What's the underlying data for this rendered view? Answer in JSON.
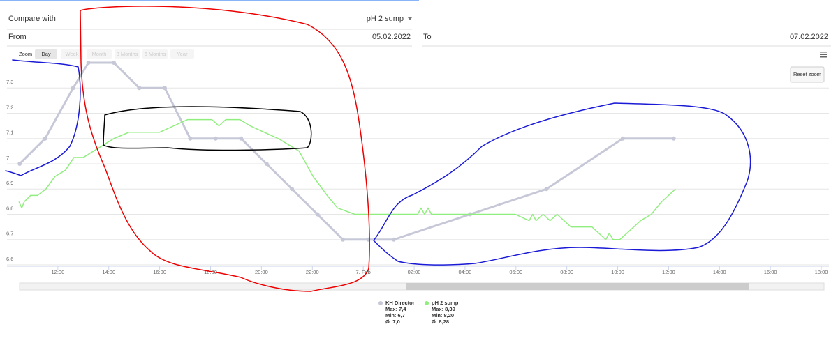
{
  "controls": {
    "compare_label": "Compare with",
    "compare_value": "pH 2 sump",
    "from_label": "From",
    "from_value": "05.02.2022",
    "to_label": "To",
    "to_value": "07.02.2022",
    "zoom_label": "Zoom",
    "zoom_buttons": [
      "Day",
      "Week",
      "Month",
      "3 Months",
      "6 Months",
      "Year"
    ],
    "reset_zoom": "Reset zoom"
  },
  "chart_data": {
    "type": "line",
    "grid": true,
    "xlim": [
      10,
      42.3
    ],
    "ylim": [
      6.6,
      7.4
    ],
    "y2lim": [
      8.16,
      8.48
    ],
    "xticks": [
      {
        "value": 12,
        "label": "12:00"
      },
      {
        "value": 14,
        "label": "14:00"
      },
      {
        "value": 16,
        "label": "16:00"
      },
      {
        "value": 18,
        "label": "18:00"
      },
      {
        "value": 20,
        "label": "20:00"
      },
      {
        "value": 22,
        "label": "22:00"
      },
      {
        "value": 24,
        "label": "7. Feb"
      },
      {
        "value": 26,
        "label": "02:00"
      },
      {
        "value": 28,
        "label": "04:00"
      },
      {
        "value": 30,
        "label": "06:00"
      },
      {
        "value": 32,
        "label": "08:00"
      },
      {
        "value": 34,
        "label": "10:00"
      },
      {
        "value": 36,
        "label": "12:00"
      },
      {
        "value": 38,
        "label": "14:00"
      },
      {
        "value": 40,
        "label": "16:00"
      },
      {
        "value": 42,
        "label": "18:00"
      }
    ],
    "yticks": [
      6.6,
      6.7,
      6.8,
      6.9,
      7,
      7.1,
      7.2,
      7.3
    ],
    "series": [
      {
        "name": "KH Director",
        "color": "#c6c8d8",
        "markers": true,
        "stats": [
          "Max: 7,4",
          "Min: 6,7",
          "Ø: 7,0"
        ],
        "x": [
          10.5,
          11.5,
          12.6,
          13.2,
          14.2,
          15.2,
          16.2,
          17.2,
          18.2,
          19.2,
          20.2,
          21.2,
          22.2,
          23.2,
          24.2,
          25.2,
          28.2,
          31.2,
          34.2,
          36.2
        ],
        "values": [
          7.0,
          7.1,
          7.3,
          7.4,
          7.4,
          7.3,
          7.3,
          7.1,
          7.1,
          7.1,
          7.0,
          6.9,
          6.8,
          6.7,
          6.7,
          6.7,
          6.8,
          6.9,
          7.1,
          7.1
        ]
      },
      {
        "name": "pH 2 sump",
        "color": "#90ee7e",
        "axis": "y2",
        "markers": false,
        "stats": [
          "Max: 8,39",
          "Min: 8,20",
          "Ø: 8,28"
        ],
        "x": [
          10.47,
          10.58,
          10.68,
          10.93,
          11.2,
          11.53,
          11.89,
          12.3,
          12.63,
          13.0,
          13.4,
          13.8,
          14.2,
          14.8,
          16.0,
          16.55,
          17.1,
          18.05,
          18.33,
          18.6,
          19.15,
          19.56,
          20.1,
          20.66,
          21.07,
          21.48,
          22.03,
          22.58,
          22.99,
          23.67,
          26.14,
          26.27,
          26.41,
          26.55,
          26.68,
          29.97,
          30.52,
          30.66,
          30.79,
          31.07,
          31.34,
          31.62,
          32.16,
          32.99,
          33.53,
          33.67,
          33.81,
          34.08,
          34.36,
          34.63,
          34.9,
          35.32,
          35.73,
          36.0,
          36.27
        ],
        "values": [
          8.26,
          8.25,
          8.26,
          8.27,
          8.27,
          8.28,
          8.3,
          8.31,
          8.33,
          8.33,
          8.34,
          8.35,
          8.36,
          8.37,
          8.37,
          8.38,
          8.39,
          8.39,
          8.38,
          8.39,
          8.39,
          8.38,
          8.37,
          8.36,
          8.35,
          8.34,
          8.3,
          8.27,
          8.25,
          8.24,
          8.24,
          8.25,
          8.24,
          8.25,
          8.24,
          8.24,
          8.23,
          8.24,
          8.23,
          8.24,
          8.23,
          8.24,
          8.22,
          8.22,
          8.2,
          8.21,
          8.2,
          8.2,
          8.21,
          8.22,
          8.23,
          8.24,
          8.26,
          8.27,
          8.28
        ]
      }
    ]
  }
}
